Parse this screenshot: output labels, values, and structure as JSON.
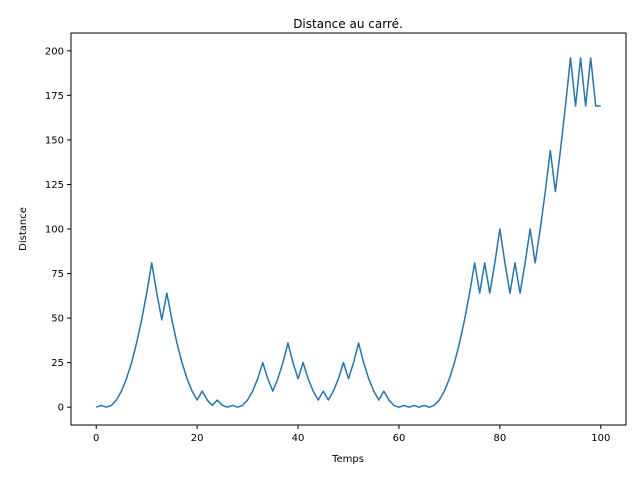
{
  "chart_data": {
    "type": "line",
    "title": "Distance au carré.",
    "xlabel": "Temps",
    "ylabel": "Distance",
    "xlim": [
      -5,
      105
    ],
    "ylim": [
      -10,
      210
    ],
    "xticks": [
      0,
      20,
      40,
      60,
      80,
      100
    ],
    "yticks": [
      0,
      25,
      50,
      75,
      100,
      125,
      150,
      175,
      200
    ],
    "grid": false,
    "legend": "none",
    "series": [
      {
        "color": "#1f77b4",
        "x": [
          0,
          1,
          2,
          3,
          4,
          5,
          6,
          7,
          8,
          9,
          10,
          11,
          12,
          13,
          14,
          15,
          16,
          17,
          18,
          19,
          20,
          21,
          22,
          23,
          24,
          25,
          26,
          27,
          28,
          29,
          30,
          31,
          32,
          33,
          34,
          35,
          36,
          37,
          38,
          39,
          40,
          41,
          42,
          43,
          44,
          45,
          46,
          47,
          48,
          49,
          50,
          51,
          52,
          53,
          54,
          55,
          56,
          57,
          58,
          59,
          60,
          61,
          62,
          63,
          64,
          65,
          66,
          67,
          68,
          69,
          70,
          71,
          72,
          73,
          74,
          75,
          76,
          77,
          78,
          79,
          80,
          81,
          82,
          83,
          84,
          85,
          86,
          87,
          88,
          89,
          90,
          91,
          92,
          93,
          94,
          95,
          96,
          97,
          98,
          99,
          100
        ],
        "y": [
          0,
          1,
          0,
          1,
          4,
          9,
          16,
          25,
          36,
          49,
          64,
          81,
          64,
          49,
          64,
          49,
          36,
          25,
          16,
          9,
          4,
          9,
          4,
          1,
          4,
          1,
          0,
          1,
          0,
          1,
          4,
          9,
          16,
          25,
          16,
          9,
          16,
          25,
          36,
          25,
          16,
          25,
          16,
          9,
          4,
          9,
          4,
          9,
          16,
          25,
          16,
          25,
          36,
          25,
          16,
          9,
          4,
          9,
          4,
          1,
          0,
          1,
          0,
          1,
          0,
          1,
          0,
          1,
          4,
          9,
          16,
          25,
          36,
          49,
          64,
          81,
          64,
          81,
          64,
          81,
          100,
          81,
          64,
          81,
          64,
          81,
          100,
          81,
          100,
          121,
          144,
          121,
          144,
          169,
          196,
          169,
          196,
          169,
          196,
          169,
          169
        ]
      }
    ]
  }
}
